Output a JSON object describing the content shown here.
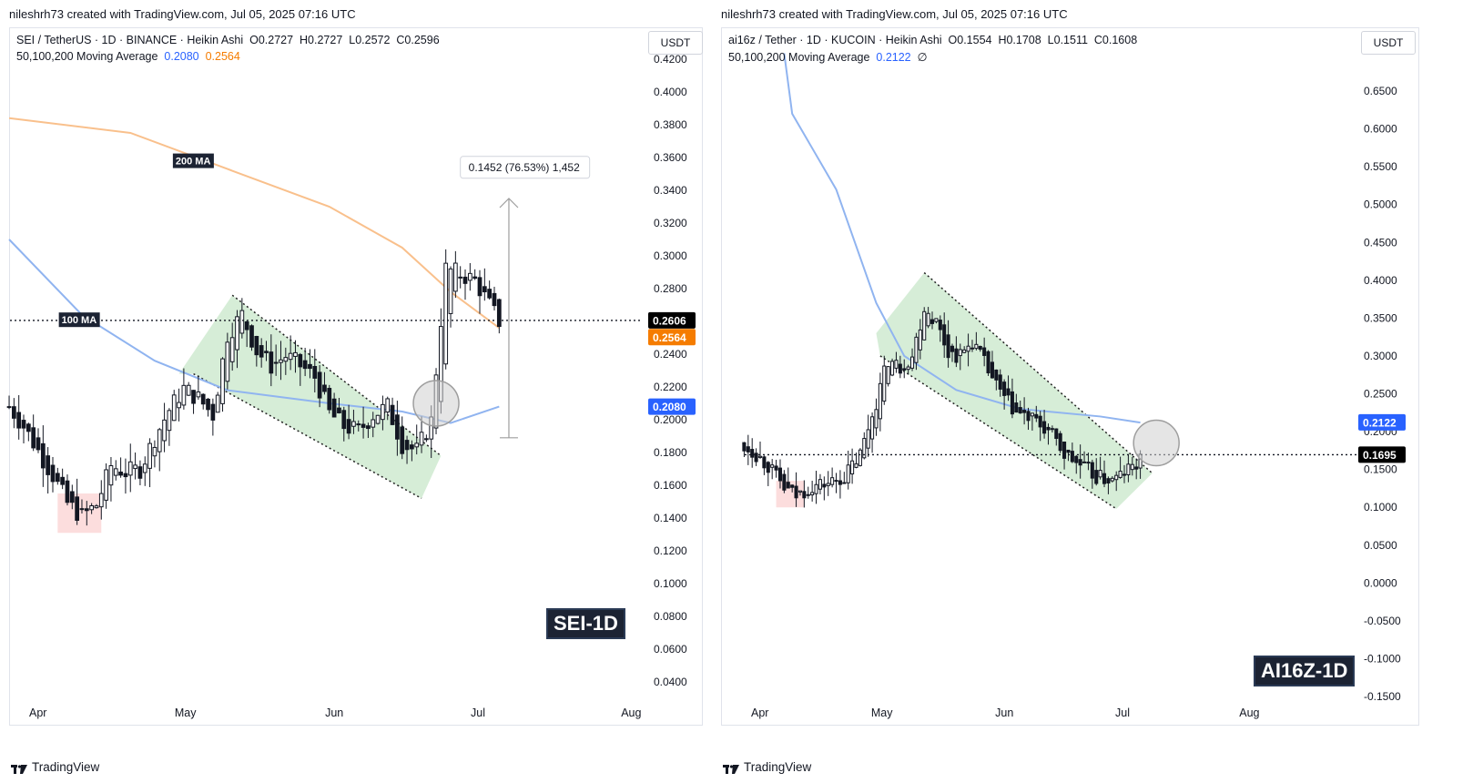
{
  "left": {
    "credit": "nileshrh73 created with TradingView.com, Jul 05, 2025 07:16 UTC",
    "legend_main": "SEI / TetherUS · 1D · BINANCE · Heikin Ashi",
    "ohlc": {
      "o": "O0.2727",
      "h": "H0.2727",
      "l": "L0.2572",
      "c": "C0.2596"
    },
    "ma_label": "50,100,200 Moving Average",
    "ma_values": [
      "0.2080",
      "0.2564"
    ],
    "unit": "USDT",
    "watermark": "SEI-1D",
    "brand": "TradingView",
    "price_tag_last": "0.2606",
    "price_tag_ma200": "0.2564",
    "price_tag_ma100": "0.2080",
    "label_200ma": "200 MA",
    "label_100ma": "100 MA",
    "measure_label": "0.1452 (76.53%) 1,452",
    "colors": {
      "ma100": "#90b4f0",
      "ma200": "#f9c08c",
      "tag_last": "#000000",
      "tag_ma200": "#f57c00",
      "tag_ma100": "#2962ff",
      "channel": "#a5d6a7",
      "low_zone": "#f8b4b4"
    }
  },
  "right": {
    "credit": "nileshrh73 created with TradingView.com, Jul 05, 2025 07:16 UTC",
    "legend_main": "ai16z / Tether · 1D · KUCOIN · Heikin Ashi",
    "ohlc": {
      "o": "O0.1554",
      "h": "H0.1708",
      "l": "L0.1511",
      "c": "C0.1608"
    },
    "ma_label": "50,100,200 Moving Average",
    "ma_values": [
      "0.2122",
      "∅"
    ],
    "unit": "USDT",
    "watermark": "AI16Z-1D",
    "brand": "TradingView",
    "price_tag_last": "0.1695",
    "price_tag_ma100": "0.2122",
    "colors": {
      "ma100": "#90b4f0",
      "tag_last": "#000000",
      "tag_ma100": "#2962ff",
      "channel": "#a5d6a7",
      "low_zone": "#f8b4b4"
    }
  },
  "chart_data": [
    {
      "type": "candlestick",
      "title": "SEI / TetherUS · 1D · BINANCE · Heikin Ashi",
      "y_ticks": [
        "0.4200",
        "0.4000",
        "0.3800",
        "0.3600",
        "0.3400",
        "0.3200",
        "0.3000",
        "0.2800",
        "0.2400",
        "0.2200",
        "0.2000",
        "0.1800",
        "0.1600",
        "0.1400",
        "0.1200",
        "0.1000",
        "0.0800",
        "0.0600",
        "0.0400"
      ],
      "x_ticks": [
        "Apr",
        "May",
        "Jun",
        "Jul",
        "Aug"
      ],
      "ylim": [
        0.03,
        0.43
      ],
      "last_price": 0.2606,
      "ma_series": [
        {
          "name": "200 MA",
          "start": 0.385,
          "end": 0.256
        },
        {
          "name": "100 MA",
          "start": 0.31,
          "end": 0.208
        }
      ],
      "close_path": [
        [
          "2025-03-26",
          0.208
        ],
        [
          "2025-03-29",
          0.196
        ],
        [
          "2025-04-01",
          0.181
        ],
        [
          "2025-04-04",
          0.166
        ],
        [
          "2025-04-07",
          0.149
        ],
        [
          "2025-04-10",
          0.141
        ],
        [
          "2025-04-13",
          0.148
        ],
        [
          "2025-04-16",
          0.172
        ],
        [
          "2025-04-19",
          0.168
        ],
        [
          "2025-04-22",
          0.17
        ],
        [
          "2025-04-25",
          0.189
        ],
        [
          "2025-04-28",
          0.206
        ],
        [
          "2025-05-01",
          0.219
        ],
        [
          "2025-05-04",
          0.213
        ],
        [
          "2025-05-07",
          0.203
        ],
        [
          "2025-05-10",
          0.252
        ],
        [
          "2025-05-13",
          0.264
        ],
        [
          "2025-05-16",
          0.242
        ],
        [
          "2025-05-19",
          0.233
        ],
        [
          "2025-05-22",
          0.239
        ],
        [
          "2025-05-25",
          0.233
        ],
        [
          "2025-05-28",
          0.226
        ],
        [
          "2025-05-31",
          0.204
        ],
        [
          "2025-06-03",
          0.196
        ],
        [
          "2025-06-06",
          0.193
        ],
        [
          "2025-06-09",
          0.203
        ],
        [
          "2025-06-12",
          0.208
        ],
        [
          "2025-06-15",
          0.185
        ],
        [
          "2025-06-18",
          0.181
        ],
        [
          "2025-06-21",
          0.199
        ],
        [
          "2025-06-24",
          0.292
        ],
        [
          "2025-06-27",
          0.289
        ],
        [
          "2025-06-30",
          0.285
        ],
        [
          "2025-07-03",
          0.27
        ],
        [
          "2025-07-05",
          0.26
        ]
      ],
      "annotations": [
        "200 MA",
        "100 MA",
        "0.1452 (76.53%) 1,452"
      ]
    },
    {
      "type": "candlestick",
      "title": "ai16z / Tether · 1D · KUCOIN · Heikin Ashi",
      "y_ticks": [
        "0.6500",
        "0.6000",
        "0.5500",
        "0.5000",
        "0.4500",
        "0.4000",
        "0.3500",
        "0.3000",
        "0.2500",
        "0.2000",
        "0.1500",
        "0.1000",
        "0.0500",
        "0.0000",
        "-0.0500",
        "-0.1000",
        "-0.1500"
      ],
      "x_ticks": [
        "Apr",
        "May",
        "Jun",
        "Jul",
        "Aug"
      ],
      "ylim": [
        -0.15,
        0.7
      ],
      "last_price": 0.1695,
      "ma_series": [
        {
          "name": "100 MA",
          "start": 0.7,
          "end": 0.212
        }
      ],
      "close_path": [
        [
          "2025-03-26",
          0.185
        ],
        [
          "2025-03-30",
          0.175
        ],
        [
          "2025-04-03",
          0.155
        ],
        [
          "2025-04-07",
          0.125
        ],
        [
          "2025-04-10",
          0.115
        ],
        [
          "2025-04-14",
          0.128
        ],
        [
          "2025-04-18",
          0.132
        ],
        [
          "2025-04-22",
          0.14
        ],
        [
          "2025-04-26",
          0.17
        ],
        [
          "2025-04-30",
          0.24
        ],
        [
          "2025-05-03",
          0.295
        ],
        [
          "2025-05-06",
          0.285
        ],
        [
          "2025-05-09",
          0.3
        ],
        [
          "2025-05-12",
          0.365
        ],
        [
          "2025-05-15",
          0.345
        ],
        [
          "2025-05-18",
          0.305
        ],
        [
          "2025-05-21",
          0.3
        ],
        [
          "2025-05-24",
          0.32
        ],
        [
          "2025-05-27",
          0.29
        ],
        [
          "2025-05-31",
          0.25
        ],
        [
          "2025-06-04",
          0.225
        ],
        [
          "2025-06-08",
          0.215
        ],
        [
          "2025-06-12",
          0.2
        ],
        [
          "2025-06-16",
          0.17
        ],
        [
          "2025-06-20",
          0.155
        ],
        [
          "2025-06-24",
          0.14
        ],
        [
          "2025-06-28",
          0.135
        ],
        [
          "2025-07-02",
          0.15
        ],
        [
          "2025-07-05",
          0.16
        ]
      ],
      "annotations": []
    }
  ]
}
